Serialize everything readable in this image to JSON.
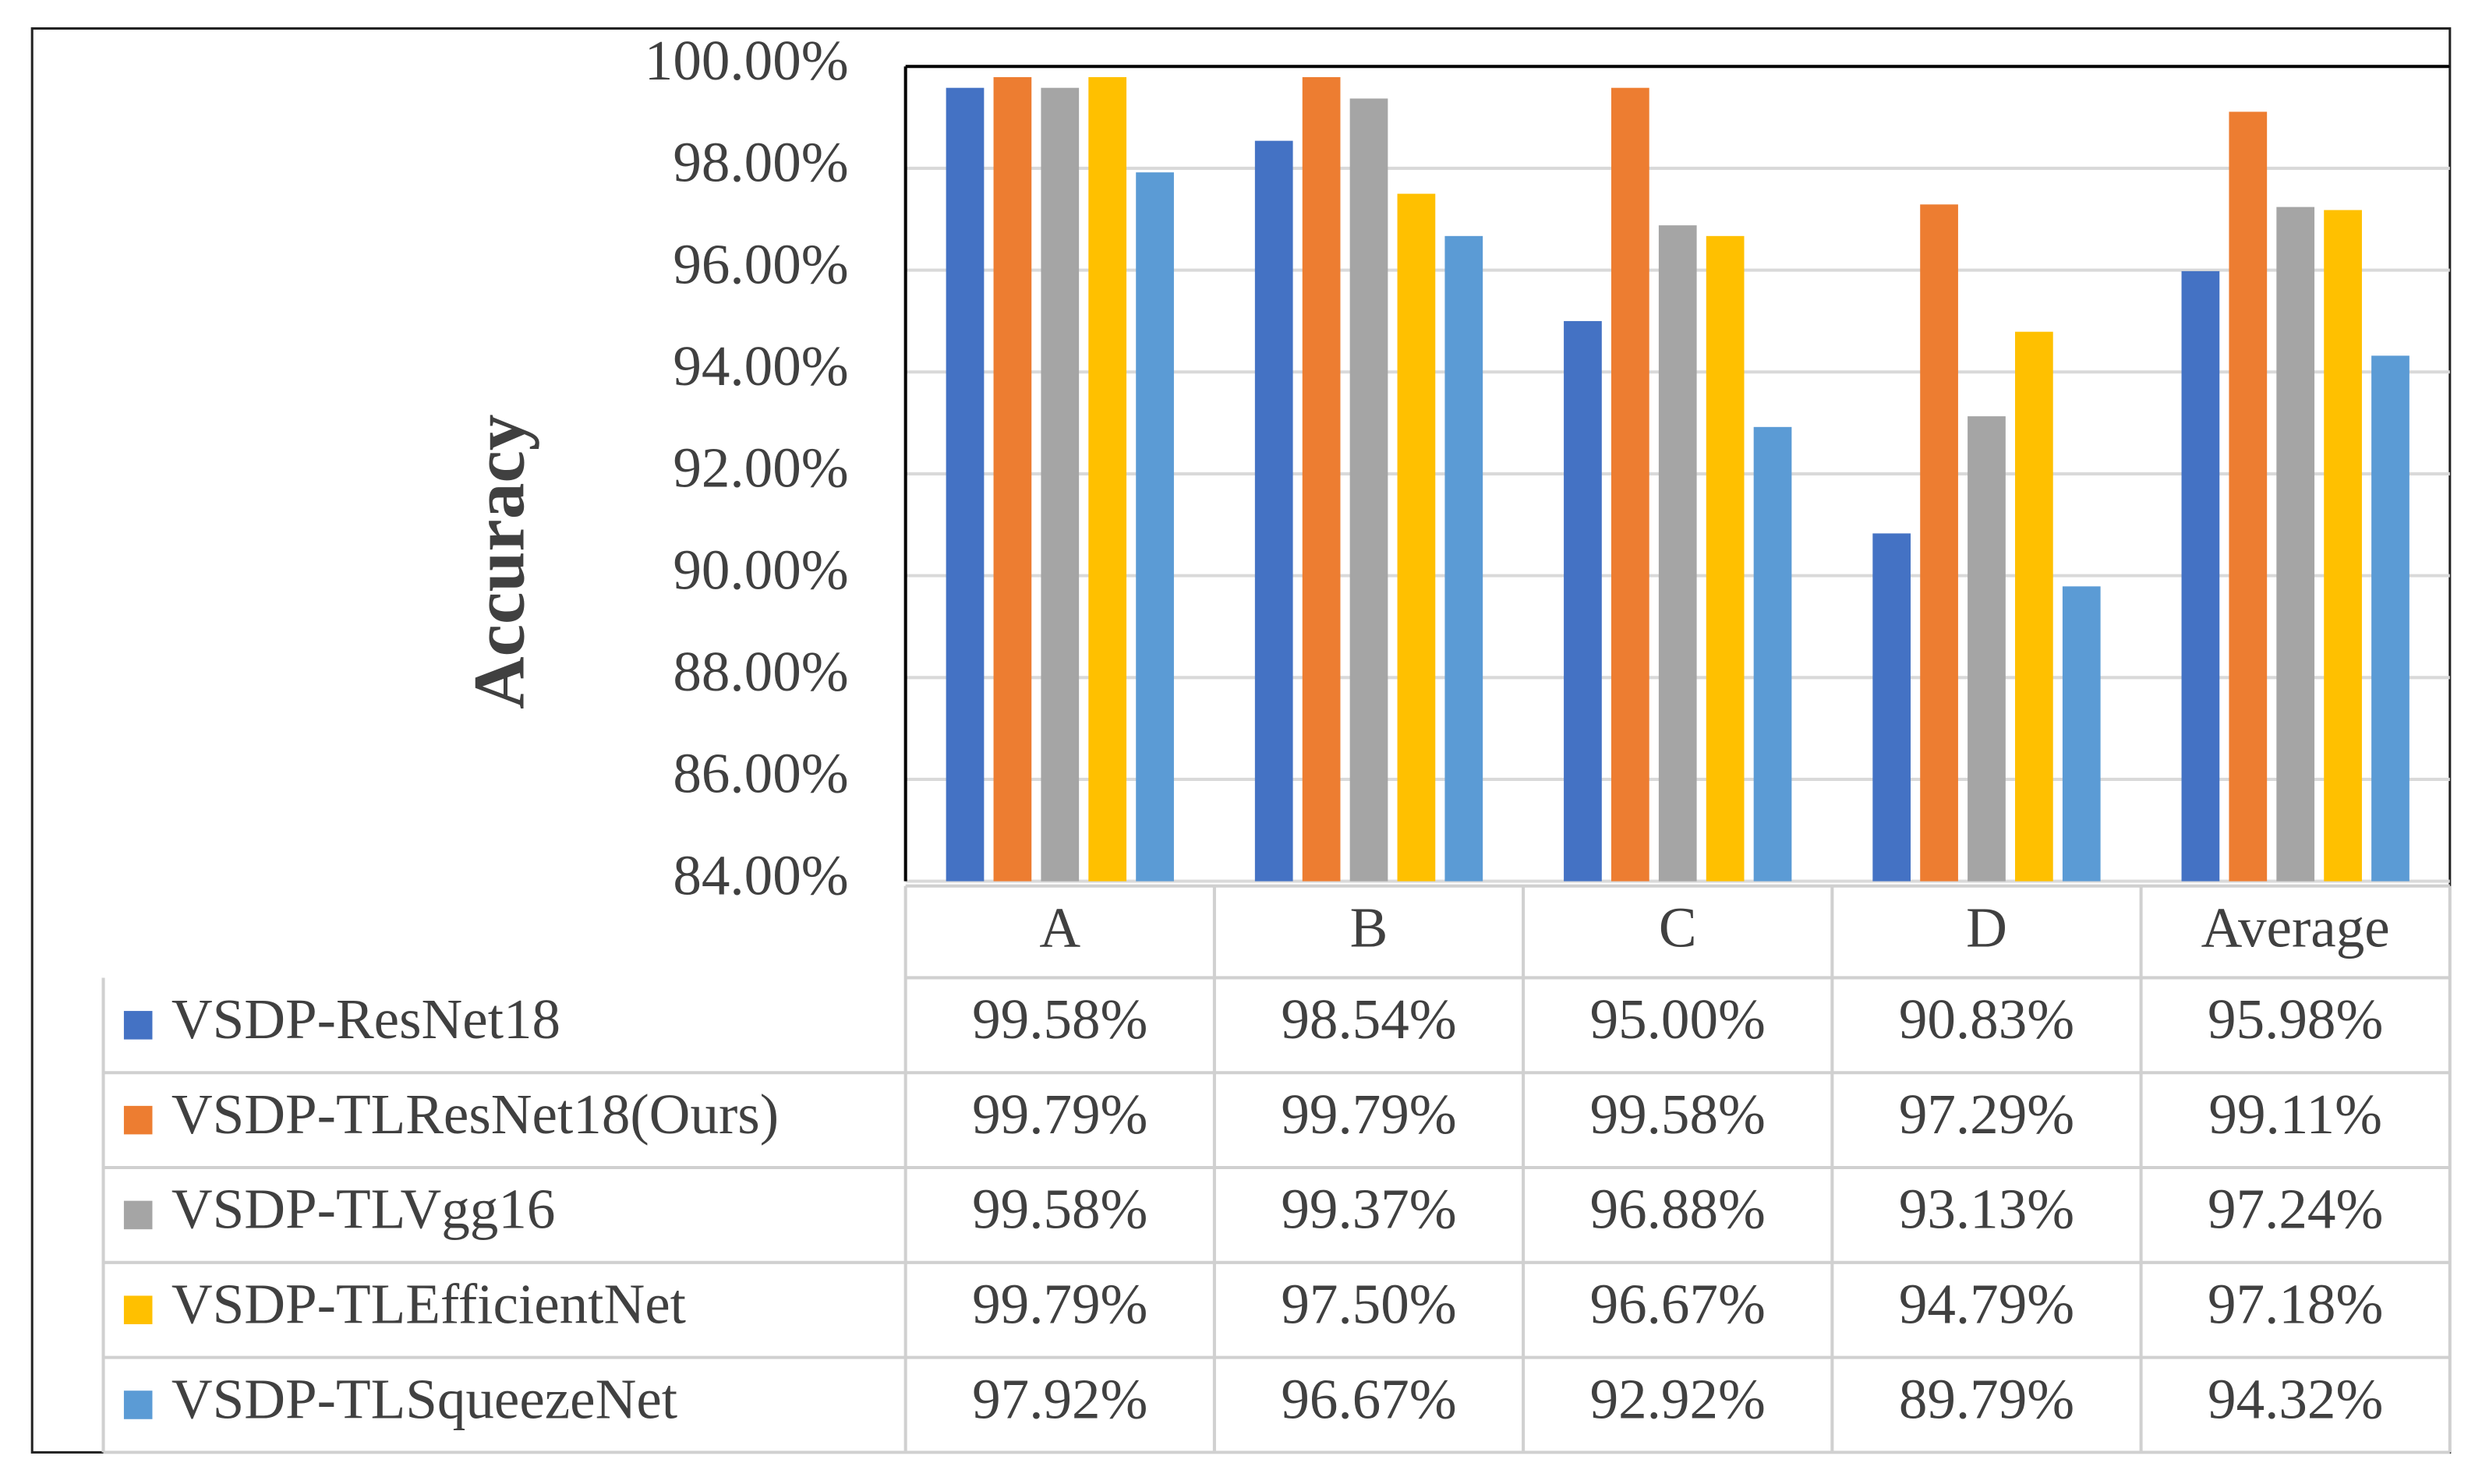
{
  "chart_data": {
    "type": "bar",
    "y_label": "Accuracy",
    "categories": [
      "A",
      "B",
      "C",
      "D",
      "Average"
    ],
    "series": [
      {
        "name": "VSDP-ResNet18",
        "color": "#4472c4",
        "values": [
          99.58,
          98.54,
          95.0,
          90.83,
          95.98
        ],
        "value_labels": [
          "99.58%",
          "98.54%",
          "95.00%",
          "90.83%",
          "95.98%"
        ]
      },
      {
        "name": "VSDP-TLResNet18(Ours)",
        "color": "#ed7d31",
        "values": [
          99.79,
          99.79,
          99.58,
          97.29,
          99.11
        ],
        "value_labels": [
          "99.79%",
          "99.79%",
          "99.58%",
          "97.29%",
          "99.11%"
        ]
      },
      {
        "name": "VSDP-TLVgg16",
        "color": "#a5a5a5",
        "values": [
          99.58,
          99.37,
          96.88,
          93.13,
          97.24
        ],
        "value_labels": [
          "99.58%",
          "99.37%",
          "96.88%",
          "93.13%",
          "97.24%"
        ]
      },
      {
        "name": "VSDP-TLEfficientNet",
        "color": "#ffc000",
        "values": [
          99.79,
          97.5,
          96.67,
          94.79,
          97.18
        ],
        "value_labels": [
          "99.79%",
          "97.50%",
          "96.67%",
          "94.79%",
          "97.18%"
        ]
      },
      {
        "name": "VSDP-TLSqueezeNet",
        "color": "#5b9bd5",
        "values": [
          97.92,
          96.67,
          92.92,
          89.79,
          94.32
        ],
        "value_labels": [
          "97.92%",
          "96.67%",
          "92.92%",
          "89.79%",
          "94.32%"
        ]
      }
    ],
    "ylim": [
      84,
      100
    ],
    "yticks": [
      {
        "value": 84,
        "label": "84.00%"
      },
      {
        "value": 86,
        "label": "86.00%"
      },
      {
        "value": 88,
        "label": "88.00%"
      },
      {
        "value": 90,
        "label": "90.00%"
      },
      {
        "value": 92,
        "label": "92.00%"
      },
      {
        "value": 94,
        "label": "94.00%"
      },
      {
        "value": 96,
        "label": "96.00%"
      },
      {
        "value": 98,
        "label": "98.00%"
      },
      {
        "value": 100,
        "label": "100.00%"
      }
    ],
    "grid": true
  }
}
